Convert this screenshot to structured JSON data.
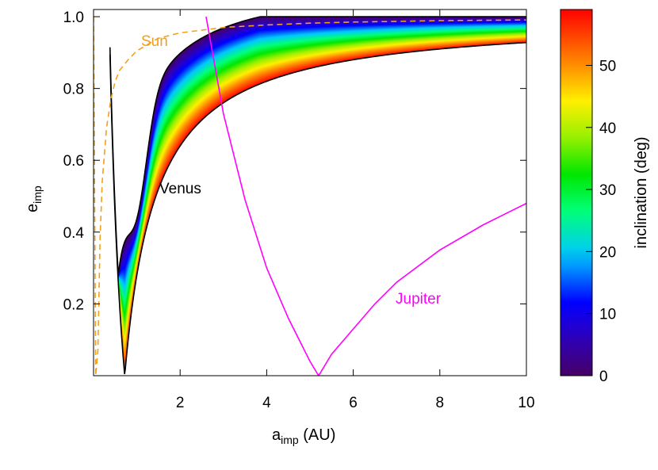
{
  "chart_data": {
    "type": "scatter",
    "xlabel": {
      "main": "a",
      "sub": "imp",
      "unit": " (AU)"
    },
    "ylabel": {
      "main": "e",
      "sub": "imp"
    },
    "xlim": [
      0,
      10
    ],
    "ylim": [
      0,
      1.02
    ],
    "x_ticks": [
      2,
      4,
      6,
      8,
      10
    ],
    "y_ticks": [
      0.2,
      0.4,
      0.6,
      0.8,
      1.0
    ],
    "x_tick_labels": [
      "2",
      "4",
      "6",
      "8",
      "10"
    ],
    "y_tick_labels": [
      "0.2",
      "0.4",
      "0.6",
      "0.8",
      "1.0"
    ],
    "colorbar": {
      "label": "inclination (deg)",
      "range": [
        0,
        59
      ],
      "ticks": [
        0,
        10,
        20,
        30,
        40,
        50
      ],
      "tick_labels": [
        "0",
        "10",
        "20",
        "30",
        "40",
        "50"
      ],
      "colormap": "rainbow"
    },
    "venus_region": {
      "planet_a_au": 0.72,
      "label": "Venus",
      "label_color": "#000000",
      "min_inclination_deg": 0,
      "max_inclination_deg": 59
    },
    "curves": [
      {
        "label": "Sun",
        "style": "dashed",
        "color": "#f0a020",
        "x": [
          0.0,
          0.05,
          0.1,
          0.15,
          0.2,
          0.3,
          0.4,
          0.5,
          0.6,
          0.8,
          1.0,
          1.5,
          2,
          3,
          4,
          5,
          6,
          7,
          8,
          9,
          10
        ],
        "y": [
          1.0,
          0.0,
          0.07,
          0.38,
          0.54,
          0.69,
          0.77,
          0.82,
          0.85,
          0.88,
          0.905,
          0.94,
          0.955,
          0.97,
          0.977,
          0.982,
          0.985,
          0.987,
          0.989,
          0.99,
          0.991
        ]
      },
      {
        "label": "Jupiter",
        "style": "solid",
        "color": "#ff00ff",
        "x": [
          2.6,
          3.0,
          3.5,
          4.0,
          4.5,
          5.0,
          5.2,
          5.5,
          6.0,
          6.5,
          7.0,
          8.0,
          9.0,
          10.0
        ],
        "y": [
          1.0,
          0.73,
          0.49,
          0.3,
          0.16,
          0.04,
          0.0,
          0.06,
          0.13,
          0.2,
          0.26,
          0.35,
          0.42,
          0.48
        ]
      }
    ]
  }
}
